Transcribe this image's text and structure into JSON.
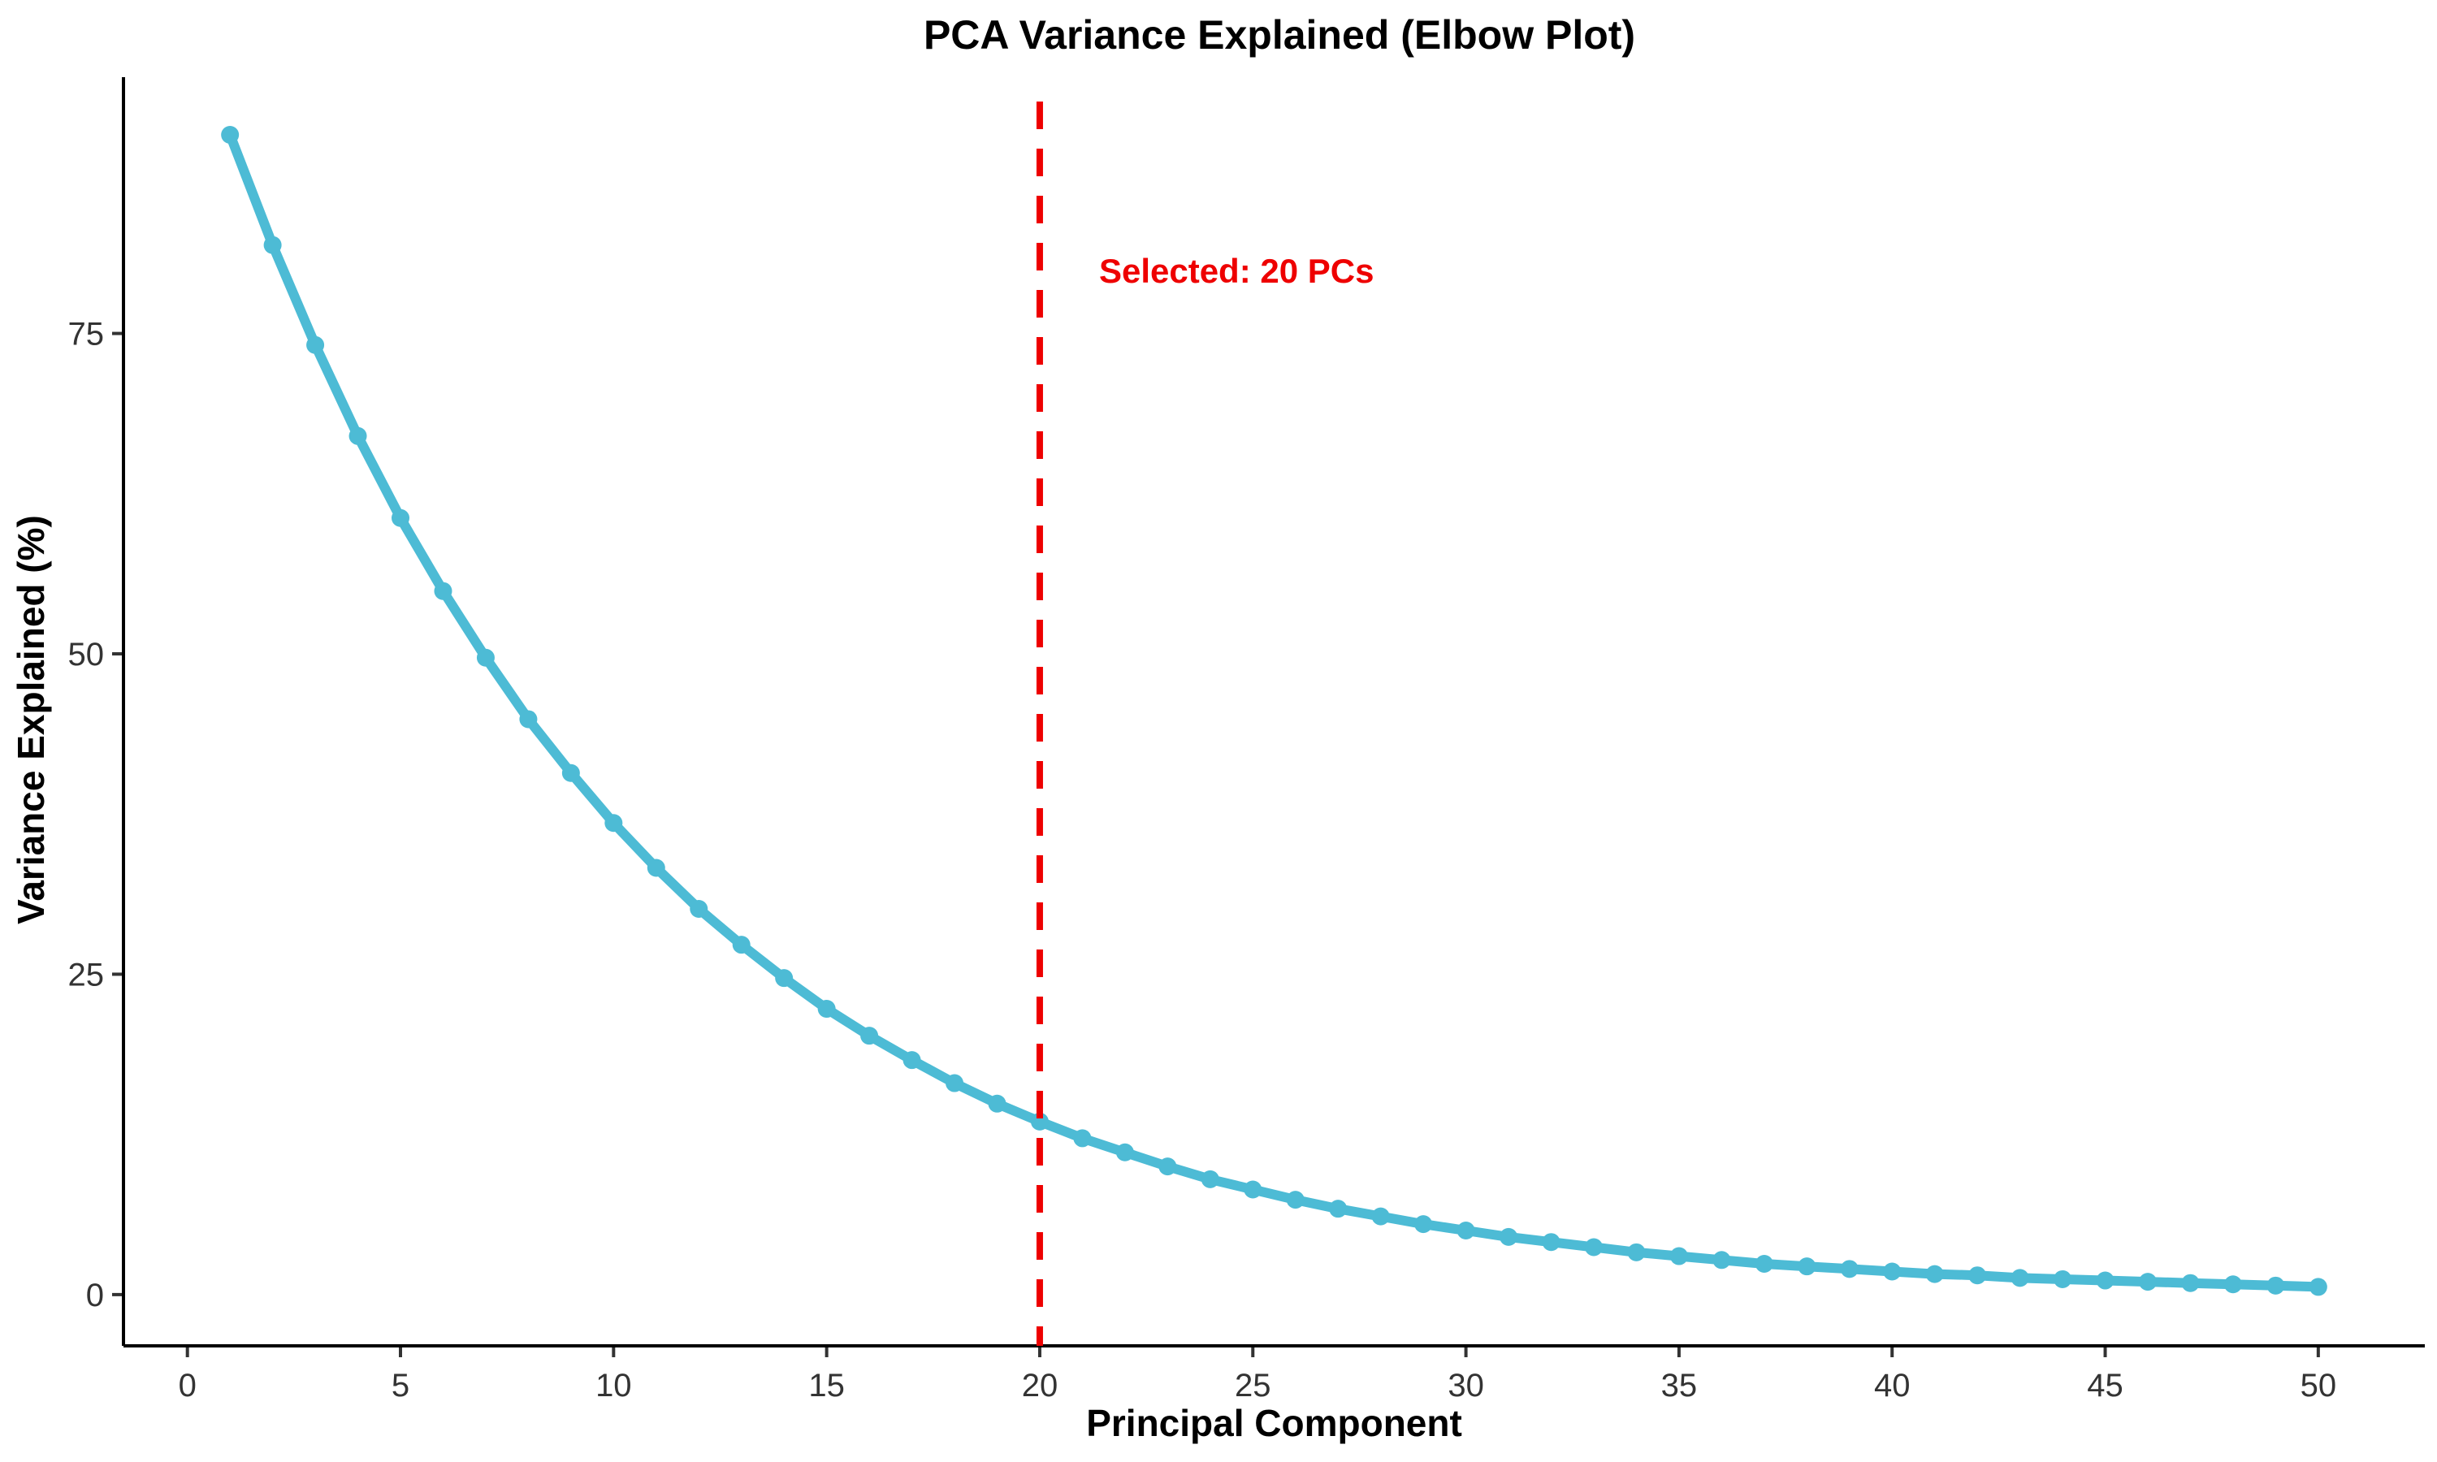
{
  "chart_data": {
    "type": "line",
    "title": "PCA Variance Explained (Elbow Plot)",
    "xlabel": "Principal Component",
    "ylabel": "Variance Explained (%)",
    "xlim": [
      -1.5,
      52.5
    ],
    "ylim": [
      -4,
      95
    ],
    "x_ticks": [
      0,
      5,
      10,
      15,
      20,
      25,
      30,
      35,
      40,
      45,
      50
    ],
    "y_ticks": [
      0,
      25,
      50,
      75
    ],
    "grid": false,
    "series": [
      {
        "x": [
          1,
          2,
          3,
          4,
          5,
          6,
          7,
          8,
          9,
          10,
          11,
          12,
          13,
          14,
          15,
          16,
          17,
          18,
          19,
          20,
          21,
          22,
          23,
          24,
          25,
          26,
          27,
          28,
          29,
          30,
          31,
          32,
          33,
          34,
          35,
          36,
          37,
          38,
          39,
          40,
          41,
          42,
          43,
          44,
          45,
          46,
          47,
          48,
          49,
          50
        ],
        "values": [
          90.5,
          81.9,
          74.1,
          67.0,
          60.6,
          54.9,
          49.7,
          44.9,
          40.7,
          36.8,
          33.3,
          30.1,
          27.3,
          24.7,
          22.3,
          20.2,
          18.3,
          16.5,
          14.9,
          13.5,
          12.2,
          11.1,
          10.0,
          9.0,
          8.2,
          7.4,
          6.7,
          6.1,
          5.5,
          5.0,
          4.5,
          4.1,
          3.7,
          3.3,
          3.0,
          2.7,
          2.4,
          2.2,
          2.0,
          1.8,
          1.6,
          1.5,
          1.3,
          1.2,
          1.1,
          1.0,
          0.9,
          0.8,
          0.7,
          0.6
        ],
        "color": "#4DBBD5"
      }
    ],
    "reference_line": {
      "x": 20,
      "style": "dashed",
      "color": "#EE0000",
      "label": "Selected: 20 PCs"
    }
  }
}
